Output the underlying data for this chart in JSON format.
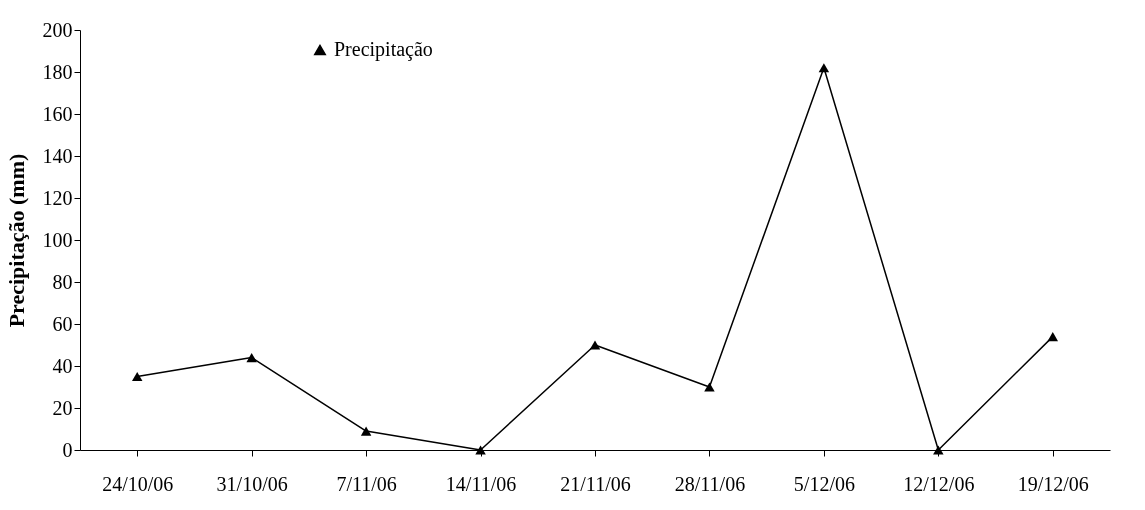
{
  "chart_data": {
    "type": "line",
    "ylabel": "Precipitação (mm)",
    "categories": [
      "24/10/06",
      "31/10/06",
      "7/11/06",
      "14/11/06",
      "21/11/06",
      "28/11/06",
      "5/12/06",
      "12/12/06",
      "19/12/06"
    ],
    "series": [
      {
        "name": "Precipitação",
        "color": "#000000",
        "values": [
          35,
          44,
          9,
          0,
          50,
          30,
          182,
          0,
          54
        ]
      }
    ],
    "ylim": [
      0,
      200
    ],
    "yticks": [
      0,
      20,
      40,
      60,
      80,
      100,
      120,
      140,
      160,
      180,
      200
    ],
    "grid": false,
    "legend": "top left",
    "marker": "triangle",
    "line_style": "solid"
  }
}
